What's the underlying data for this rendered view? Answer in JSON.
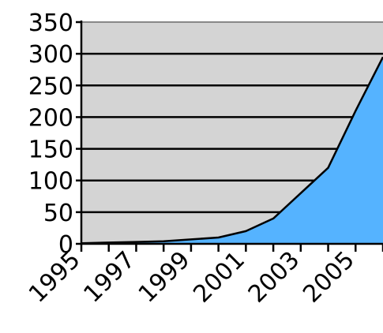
{
  "chart_data": {
    "type": "area",
    "x": [
      1995,
      1996,
      1997,
      1998,
      1999,
      2000,
      2001,
      2002,
      2003,
      2004,
      2005,
      2006
    ],
    "values": [
      1,
      2,
      3,
      4,
      7,
      10,
      20,
      40,
      80,
      120,
      210,
      295
    ],
    "ylim": [
      0,
      350
    ],
    "xlim": [
      1995,
      2006
    ],
    "y_ticks": [
      0,
      50,
      100,
      150,
      200,
      250,
      300,
      350
    ],
    "y_tick_labels": [
      "0",
      "50",
      "100",
      "150",
      "200",
      "250",
      "300",
      "350"
    ],
    "x_ticks": [
      1995,
      1997,
      1999,
      2001,
      2003,
      2005
    ],
    "x_tick_labels": [
      "1995",
      "1997",
      "1999",
      "2001",
      "2003",
      "2005"
    ],
    "grid": true,
    "colors": {
      "plot_background": "#d4d4d4",
      "area_fill": "#55b3ff",
      "line": "#000000",
      "grid": "#000000"
    }
  }
}
